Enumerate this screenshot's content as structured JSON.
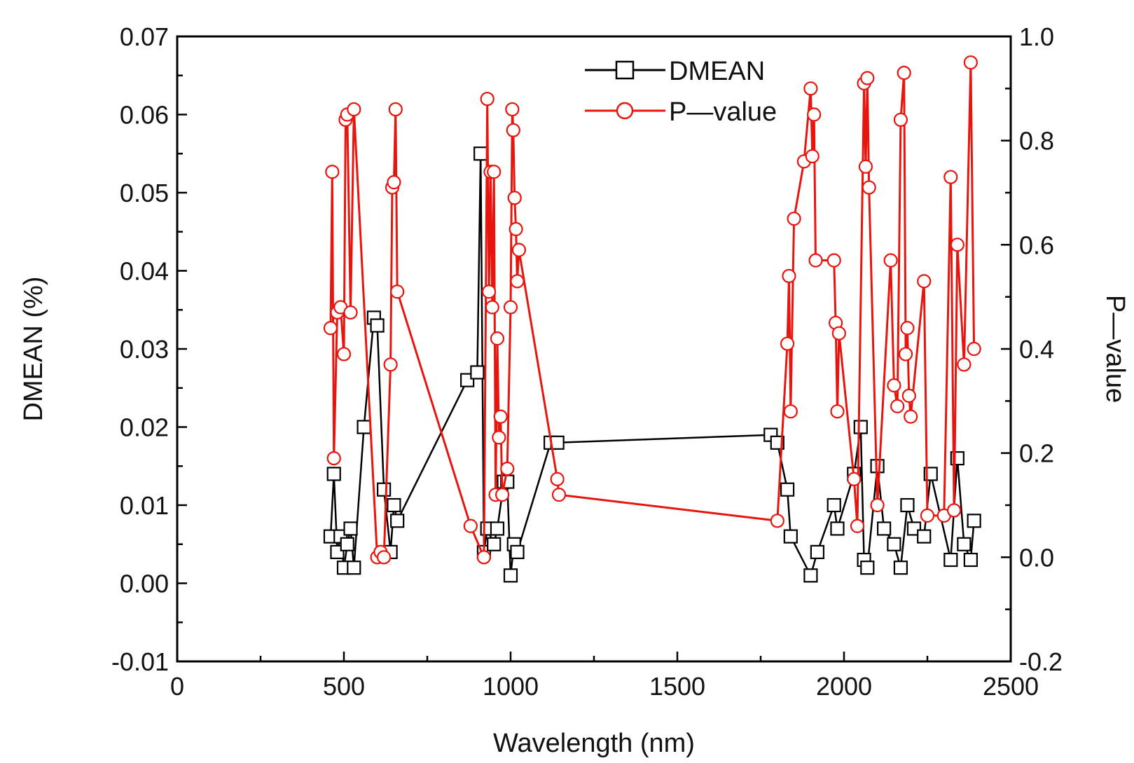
{
  "chart_data": {
    "type": "line",
    "title": "",
    "xlabel": "Wavelength (nm)",
    "ylabel": "DMEAN (%)",
    "y2label": "P—value",
    "xlim": [
      0,
      2500
    ],
    "ylim": [
      -0.01,
      0.07
    ],
    "y2lim": [
      -0.2,
      1.0
    ],
    "grid": false,
    "legend_position": "top-center",
    "x_ticks": [
      "0",
      "500",
      "1000",
      "1500",
      "2000",
      "2500"
    ],
    "y_ticks": [
      "0.07",
      "0.06",
      "0.05",
      "0.04",
      "0.03",
      "0.02",
      "0.01",
      "0.00",
      "-0.01"
    ],
    "y2_ticks": [
      "1.0",
      "0.8",
      "0.6",
      "0.4",
      "0.2",
      "0.0",
      "-0.2"
    ],
    "series": [
      {
        "name": "DMEAN",
        "axis": "left",
        "color": "#000000",
        "marker": "square",
        "x": [
          460,
          470,
          480,
          490,
          500,
          510,
          520,
          530,
          560,
          590,
          600,
          620,
          640,
          650,
          660,
          870,
          900,
          910,
          920,
          930,
          950,
          960,
          980,
          990,
          1000,
          1010,
          1020,
          1120,
          1140,
          1780,
          1800,
          1830,
          1840,
          1900,
          1920,
          1970,
          1980,
          2030,
          2050,
          2060,
          2070,
          2100,
          2120,
          2150,
          2170,
          2190,
          2210,
          2240,
          2260,
          2320,
          2340,
          2360,
          2380,
          2390
        ],
        "values": [
          0.006,
          0.014,
          0.004,
          0.006,
          0.002,
          0.005,
          0.007,
          0.002,
          0.02,
          0.034,
          0.033,
          0.012,
          0.004,
          0.01,
          0.008,
          0.026,
          0.027,
          0.055,
          0.004,
          0.007,
          0.005,
          0.007,
          0.013,
          0.013,
          0.001,
          0.005,
          0.004,
          0.018,
          0.018,
          0.019,
          0.018,
          0.012,
          0.006,
          0.001,
          0.004,
          0.01,
          0.007,
          0.014,
          0.02,
          0.003,
          0.002,
          0.015,
          0.007,
          0.005,
          0.002,
          0.01,
          0.007,
          0.006,
          0.014,
          0.003,
          0.016,
          0.005,
          0.003,
          0.008
        ]
      },
      {
        "name": "P—value",
        "axis": "right",
        "color": "#e8150f",
        "marker": "circle",
        "x": [
          460,
          465,
          470,
          480,
          490,
          500,
          505,
          510,
          520,
          530,
          600,
          610,
          620,
          640,
          645,
          650,
          655,
          660,
          880,
          920,
          930,
          935,
          940,
          945,
          950,
          955,
          960,
          965,
          970,
          975,
          990,
          1000,
          1005,
          1008,
          1012,
          1016,
          1020,
          1025,
          1140,
          1145,
          1800,
          1830,
          1835,
          1840,
          1850,
          1880,
          1900,
          1905,
          1910,
          1915,
          1970,
          1975,
          1980,
          1985,
          2030,
          2040,
          2060,
          2065,
          2070,
          2075,
          2100,
          2140,
          2150,
          2160,
          2170,
          2180,
          2185,
          2190,
          2195,
          2200,
          2240,
          2250,
          2300,
          2320,
          2330,
          2340,
          2360,
          2380,
          2390
        ],
        "values": [
          0.44,
          0.74,
          0.19,
          0.47,
          0.48,
          0.39,
          0.84,
          0.85,
          0.47,
          0.86,
          0.0,
          0.01,
          0.0,
          0.37,
          0.71,
          0.72,
          0.86,
          0.51,
          0.06,
          0.0,
          0.88,
          0.51,
          0.74,
          0.48,
          0.74,
          0.12,
          0.42,
          0.23,
          0.27,
          0.12,
          0.17,
          0.48,
          0.86,
          0.82,
          0.69,
          0.63,
          0.53,
          0.59,
          0.15,
          0.12,
          0.07,
          0.41,
          0.54,
          0.28,
          0.65,
          0.76,
          0.9,
          0.77,
          0.85,
          0.57,
          0.57,
          0.45,
          0.28,
          0.43,
          0.15,
          0.06,
          0.91,
          0.75,
          0.92,
          0.71,
          0.1,
          0.57,
          0.33,
          0.29,
          0.84,
          0.93,
          0.39,
          0.44,
          0.31,
          0.27,
          0.53,
          0.08,
          0.08,
          0.73,
          0.09,
          0.6,
          0.37,
          0.95,
          0.4
        ]
      }
    ],
    "legend": [
      "DMEAN",
      "P—value"
    ]
  }
}
